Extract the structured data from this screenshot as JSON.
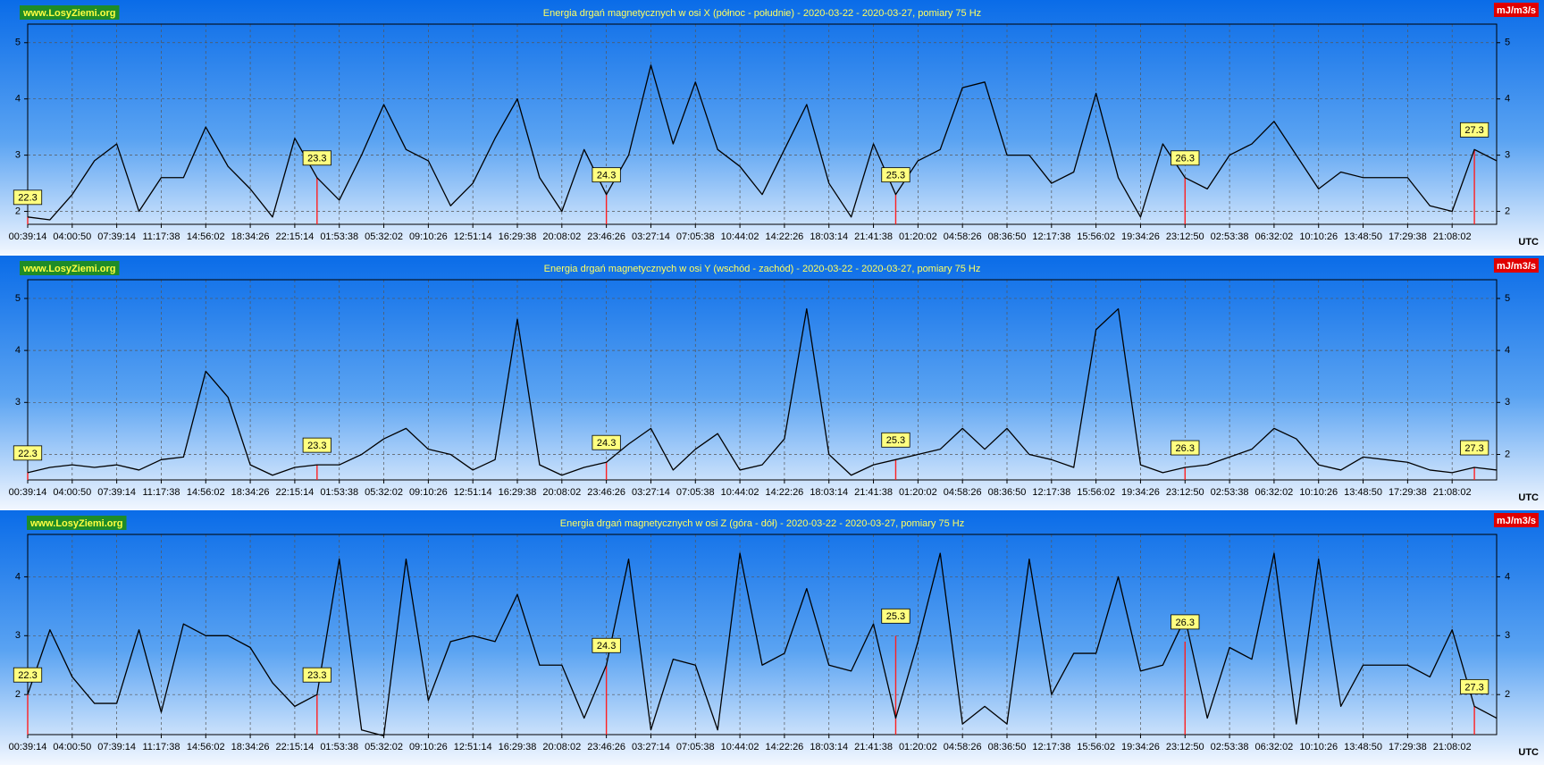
{
  "chart_data": [
    {
      "type": "line",
      "site": "www.LosyZiemi.org",
      "title": "Energia drgań magnetycznych w osi X (północ - południe) - 2020-03-22 - 2020-03-27, pomiary 75 Hz",
      "unit": "mJ/m3/s",
      "x_label": "UTC",
      "color": "#000000",
      "grid": true,
      "ylim": [
        1.77,
        5.33
      ],
      "yticks": [
        2,
        3,
        4,
        5
      ],
      "categories": [
        "00:39:14",
        null,
        "04:00:50",
        null,
        "07:39:14",
        null,
        "11:17:38",
        null,
        "14:56:02",
        null,
        "18:34:26",
        null,
        "22:15:14",
        null,
        "01:53:38",
        null,
        "05:32:02",
        null,
        "09:10:26",
        null,
        "12:51:14",
        null,
        "16:29:38",
        null,
        "20:08:02",
        null,
        "23:46:26",
        null,
        "03:27:14",
        null,
        "07:05:38",
        null,
        "10:44:02",
        null,
        "14:22:26",
        null,
        "18:03:14",
        null,
        "21:41:38",
        null,
        "01:20:02",
        null,
        "04:58:26",
        null,
        "08:36:50",
        null,
        "12:17:38",
        null,
        "15:56:02",
        null,
        "19:34:26",
        null,
        "23:12:50",
        null,
        "02:53:38",
        null,
        "06:32:02",
        null,
        "10:10:26",
        null,
        "13:48:50",
        null,
        "17:29:38",
        null,
        "21:08:02",
        null,
        null
      ],
      "values": [
        1.9,
        1.85,
        2.3,
        2.9,
        3.2,
        2.0,
        2.6,
        2.6,
        3.5,
        2.8,
        2.4,
        1.9,
        3.3,
        2.6,
        2.2,
        3.0,
        3.9,
        3.1,
        2.9,
        2.1,
        2.5,
        3.3,
        4.0,
        2.6,
        2.0,
        3.1,
        2.3,
        3.0,
        4.6,
        3.2,
        4.3,
        3.1,
        2.8,
        2.3,
        3.1,
        3.9,
        2.5,
        1.9,
        3.2,
        2.3,
        2.9,
        3.1,
        4.2,
        4.3,
        3.0,
        3.0,
        2.5,
        2.7,
        4.1,
        2.6,
        1.9,
        3.2,
        2.6,
        2.4,
        3.0,
        3.2,
        3.6,
        3.0,
        2.4,
        2.7,
        2.6,
        2.6,
        2.6,
        2.1,
        2.0,
        3.1,
        2.9
      ],
      "annotations": [
        {
          "text": "22.3",
          "x": 0,
          "y": 1.9
        },
        {
          "text": "23.3",
          "x": 13,
          "y": 2.6
        },
        {
          "text": "24.3",
          "x": 26,
          "y": 2.3
        },
        {
          "text": "25.3",
          "x": 39,
          "y": 2.3
        },
        {
          "text": "26.3",
          "x": 52,
          "y": 2.6
        },
        {
          "text": "27.3",
          "x": 65,
          "y": 3.1
        }
      ]
    },
    {
      "type": "line",
      "site": "www.LosyZiemi.org",
      "title": "Energia drgań magnetycznych w osi Y (wschód - zachód) - 2020-03-22 - 2020-03-27, pomiary 75 Hz",
      "unit": "mJ/m3/s",
      "x_label": "UTC",
      "color": "#000000",
      "grid": true,
      "ylim": [
        1.51,
        5.36
      ],
      "yticks": [
        2,
        3,
        4,
        5
      ],
      "categories": [
        "00:39:14",
        null,
        "04:00:50",
        null,
        "07:39:14",
        null,
        "11:17:38",
        null,
        "14:56:02",
        null,
        "18:34:26",
        null,
        "22:15:14",
        null,
        "01:53:38",
        null,
        "05:32:02",
        null,
        "09:10:26",
        null,
        "12:51:14",
        null,
        "16:29:38",
        null,
        "20:08:02",
        null,
        "23:46:26",
        null,
        "03:27:14",
        null,
        "07:05:38",
        null,
        "10:44:02",
        null,
        "14:22:26",
        null,
        "18:03:14",
        null,
        "21:41:38",
        null,
        "01:20:02",
        null,
        "04:58:26",
        null,
        "08:36:50",
        null,
        "12:17:38",
        null,
        "15:56:02",
        null,
        "19:34:26",
        null,
        "23:12:50",
        null,
        "02:53:38",
        null,
        "06:32:02",
        null,
        "10:10:26",
        null,
        "13:48:50",
        null,
        "17:29:38",
        null,
        "21:08:02",
        null,
        null
      ],
      "values": [
        1.65,
        1.75,
        1.8,
        1.75,
        1.8,
        1.7,
        1.9,
        1.95,
        3.6,
        3.1,
        1.8,
        1.6,
        1.75,
        1.8,
        1.8,
        2.0,
        2.3,
        2.5,
        2.1,
        2.0,
        1.7,
        1.9,
        4.6,
        1.8,
        1.6,
        1.75,
        1.85,
        2.2,
        2.5,
        1.7,
        2.1,
        2.4,
        1.7,
        1.8,
        2.3,
        4.8,
        2.0,
        1.6,
        1.8,
        1.9,
        2.0,
        2.1,
        2.5,
        2.1,
        2.5,
        2.0,
        1.9,
        1.75,
        4.4,
        4.8,
        1.8,
        1.65,
        1.75,
        1.8,
        1.95,
        2.1,
        2.5,
        2.3,
        1.8,
        1.7,
        1.95,
        1.9,
        1.85,
        1.7,
        1.65,
        1.75,
        1.7
      ],
      "annotations": [
        {
          "text": "22.3",
          "x": 0,
          "y": 1.65
        },
        {
          "text": "23.3",
          "x": 13,
          "y": 1.8
        },
        {
          "text": "24.3",
          "x": 26,
          "y": 1.85
        },
        {
          "text": "25.3",
          "x": 39,
          "y": 1.9
        },
        {
          "text": "26.3",
          "x": 52,
          "y": 1.75
        },
        {
          "text": "27.3",
          "x": 65,
          "y": 1.75
        }
      ]
    },
    {
      "type": "line",
      "site": "www.LosyZiemi.org",
      "title": "Energia drgań magnetycznych w osi Z (góra - dół) - 2020-03-22 - 2020-03-27, pomiary 75 Hz",
      "unit": "mJ/m3/s",
      "x_label": "UTC",
      "color": "#000000",
      "grid": true,
      "ylim": [
        1.32,
        4.72
      ],
      "yticks": [
        2,
        3,
        4
      ],
      "categories": [
        "00:39:14",
        null,
        "04:00:50",
        null,
        "07:39:14",
        null,
        "11:17:38",
        null,
        "14:56:02",
        null,
        "18:34:26",
        null,
        "22:15:14",
        null,
        "01:53:38",
        null,
        "05:32:02",
        null,
        "09:10:26",
        null,
        "12:51:14",
        null,
        "16:29:38",
        null,
        "20:08:02",
        null,
        "23:46:26",
        null,
        "03:27:14",
        null,
        "07:05:38",
        null,
        "10:44:02",
        null,
        "14:22:26",
        null,
        "18:03:14",
        null,
        "21:41:38",
        null,
        "01:20:02",
        null,
        "04:58:26",
        null,
        "08:36:50",
        null,
        "12:17:38",
        null,
        "15:56:02",
        null,
        "19:34:26",
        null,
        "23:12:50",
        null,
        "02:53:38",
        null,
        "06:32:02",
        null,
        "10:10:26",
        null,
        "13:48:50",
        null,
        "17:29:38",
        null,
        "21:08:02",
        null,
        null
      ],
      "values": [
        2.0,
        3.1,
        2.3,
        1.85,
        1.85,
        3.1,
        1.7,
        3.2,
        3.0,
        3.0,
        2.8,
        2.2,
        1.8,
        2.0,
        4.3,
        1.4,
        1.3,
        4.3,
        1.9,
        2.9,
        3.0,
        2.9,
        3.7,
        2.5,
        2.5,
        1.6,
        2.5,
        4.3,
        1.4,
        2.6,
        2.5,
        1.4,
        4.4,
        2.5,
        2.7,
        3.8,
        2.5,
        2.4,
        3.2,
        1.6,
        2.9,
        4.4,
        1.5,
        1.8,
        1.5,
        4.3,
        2.0,
        2.7,
        2.7,
        4.0,
        2.4,
        2.5,
        3.3,
        1.6,
        2.8,
        2.6,
        4.4,
        1.5,
        4.3,
        1.8,
        2.5,
        2.5,
        2.5,
        2.3,
        3.1,
        1.8,
        1.6
      ],
      "annotations": [
        {
          "text": "22.3",
          "x": 0,
          "y": 2.0
        },
        {
          "text": "23.3",
          "x": 13,
          "y": 2.0
        },
        {
          "text": "24.3",
          "x": 26,
          "y": 2.5
        },
        {
          "text": "25.3",
          "x": 39,
          "y": 3.0
        },
        {
          "text": "26.3",
          "x": 52,
          "y": 2.9
        },
        {
          "text": "27.3",
          "x": 65,
          "y": 1.8
        }
      ]
    }
  ]
}
